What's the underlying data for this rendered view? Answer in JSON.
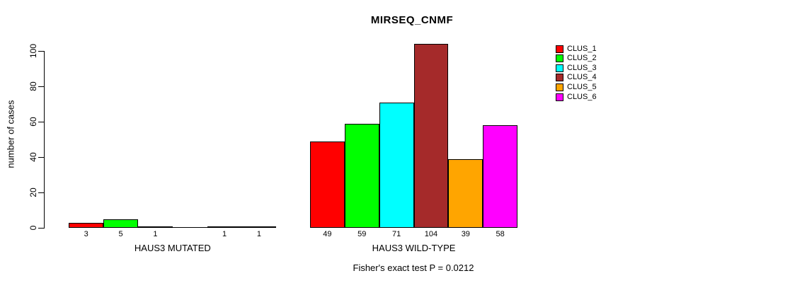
{
  "chart_data": {
    "type": "bar",
    "title": "MIRSEQ_CNMF",
    "ylabel": "number of cases",
    "subtitle": "Fisher's exact test P = 0.0212",
    "yticks": [
      0,
      20,
      40,
      60,
      80,
      100
    ],
    "ylim": [
      0,
      104
    ],
    "grid": false,
    "legend_position": "right",
    "series": [
      {
        "name": "CLUS_1",
        "color": "#FF0000"
      },
      {
        "name": "CLUS_2",
        "color": "#00FF00"
      },
      {
        "name": "CLUS_3",
        "color": "#00FFFF"
      },
      {
        "name": "CLUS_4",
        "color": "#A52A2A"
      },
      {
        "name": "CLUS_5",
        "color": "#FFA500"
      },
      {
        "name": "CLUS_6",
        "color": "#FF00FF"
      }
    ],
    "groups": [
      {
        "label": "HAUS3 MUTATED",
        "values": [
          3,
          5,
          1,
          0,
          1,
          1
        ]
      },
      {
        "label": "HAUS3 WILD-TYPE",
        "values": [
          49,
          59,
          71,
          104,
          39,
          58
        ]
      }
    ]
  }
}
